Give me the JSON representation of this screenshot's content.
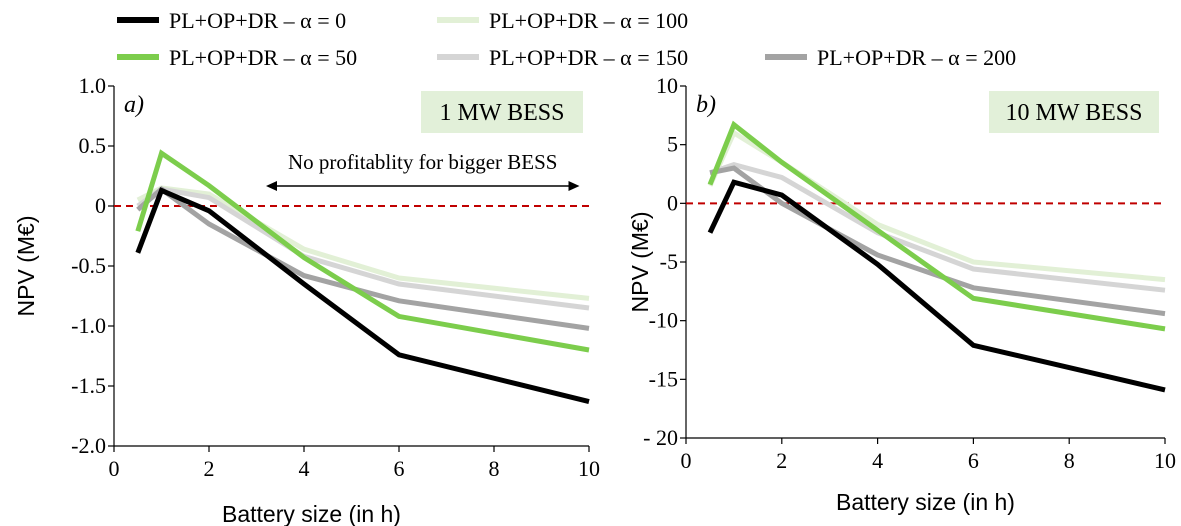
{
  "legend": {
    "items": [
      {
        "label": "PL+OP+DR – α = 0",
        "color": "#000000"
      },
      {
        "label": "PL+OP+DR – α = 100",
        "color": "#e2f0d6"
      },
      {
        "label": "PL+OP+DR – α = 50",
        "color": "#7ccd4c"
      },
      {
        "label": "PL+OP+DR – α = 150",
        "color": "#d5d5d5"
      },
      {
        "label": "PL+OP+DR – α = 200",
        "color": "#a3a3a3"
      }
    ]
  },
  "chart_data": [
    {
      "type": "line",
      "panel_label": "a)",
      "box_label": "1 MW BESS",
      "annotation": "No profitablity for bigger BESS",
      "annotation_range": [
        3.2,
        9.8
      ],
      "xlabel": "Battery size (in h)",
      "ylabel": "NPV (M€)",
      "xlim": [
        0,
        10
      ],
      "ylim": [
        -2.0,
        1.0
      ],
      "xticks": [
        0,
        2,
        4,
        6,
        8,
        10
      ],
      "xtick_labels": [
        "0",
        "2",
        "4",
        "6",
        "8",
        "10"
      ],
      "yticks": [
        1.0,
        0.5,
        0,
        -0.5,
        -1.0,
        -1.5,
        -2.0
      ],
      "ytick_labels": [
        "1.0",
        "0.5",
        "0",
        "-0.5",
        "-1.0",
        "-1.5",
        "-2.0"
      ],
      "reference_line": 0,
      "x": [
        0.5,
        1,
        2,
        4,
        6,
        10
      ],
      "series": [
        {
          "name": "PL+OP+DR – α = 100",
          "color": "#e2f0d6",
          "values": [
            0.05,
            0.15,
            0.1,
            -0.36,
            -0.6,
            -0.77
          ]
        },
        {
          "name": "PL+OP+DR – α = 150",
          "color": "#d5d5d5",
          "values": [
            0.0,
            0.14,
            0.07,
            -0.42,
            -0.65,
            -0.85
          ]
        },
        {
          "name": "PL+OP+DR – α = 200",
          "color": "#a3a3a3",
          "values": [
            -0.03,
            0.14,
            -0.15,
            -0.58,
            -0.79,
            -1.02
          ]
        },
        {
          "name": "PL+OP+DR – α = 0",
          "color": "#000000",
          "values": [
            -0.39,
            0.13,
            -0.04,
            -0.65,
            -1.24,
            -1.63
          ]
        },
        {
          "name": "PL+OP+DR – α = 50",
          "color": "#7ccd4c",
          "values": [
            -0.21,
            0.44,
            0.17,
            -0.43,
            -0.92,
            -1.2
          ]
        }
      ]
    },
    {
      "type": "line",
      "panel_label": "b)",
      "box_label": "10 MW BESS",
      "xlabel": "Battery size (in h)",
      "ylabel": "NPV (M€)",
      "xlim": [
        0,
        10
      ],
      "ylim": [
        -20,
        10
      ],
      "xticks": [
        0,
        2,
        4,
        6,
        8,
        10
      ],
      "xtick_labels": [
        "0",
        "2",
        "4",
        "6",
        "8",
        "10"
      ],
      "yticks": [
        10,
        5,
        0,
        -5,
        -10,
        -15,
        -20
      ],
      "ytick_labels": [
        "10",
        "5",
        "0",
        "-5",
        "-10",
        "-15",
        "- 20"
      ],
      "reference_line": 0,
      "x": [
        0.5,
        1,
        2,
        4,
        6,
        10
      ],
      "series": [
        {
          "name": "PL+OP+DR – α = 100",
          "color": "#e2f0d6",
          "values": [
            1.5,
            6.0,
            3.5,
            -1.8,
            -5.0,
            -6.5
          ]
        },
        {
          "name": "PL+OP+DR – α = 150",
          "color": "#d5d5d5",
          "values": [
            2.6,
            3.3,
            2.2,
            -2.5,
            -5.6,
            -7.4
          ]
        },
        {
          "name": "PL+OP+DR – α = 200",
          "color": "#a3a3a3",
          "values": [
            2.6,
            3.0,
            0.0,
            -4.4,
            -7.2,
            -9.4
          ]
        },
        {
          "name": "PL+OP+DR – α = 0",
          "color": "#000000",
          "values": [
            -2.5,
            1.8,
            0.7,
            -5.2,
            -12.1,
            -15.9
          ]
        },
        {
          "name": "PL+OP+DR – α = 50",
          "color": "#7ccd4c",
          "values": [
            1.6,
            6.7,
            3.5,
            -2.3,
            -8.1,
            -10.7
          ]
        }
      ]
    }
  ]
}
